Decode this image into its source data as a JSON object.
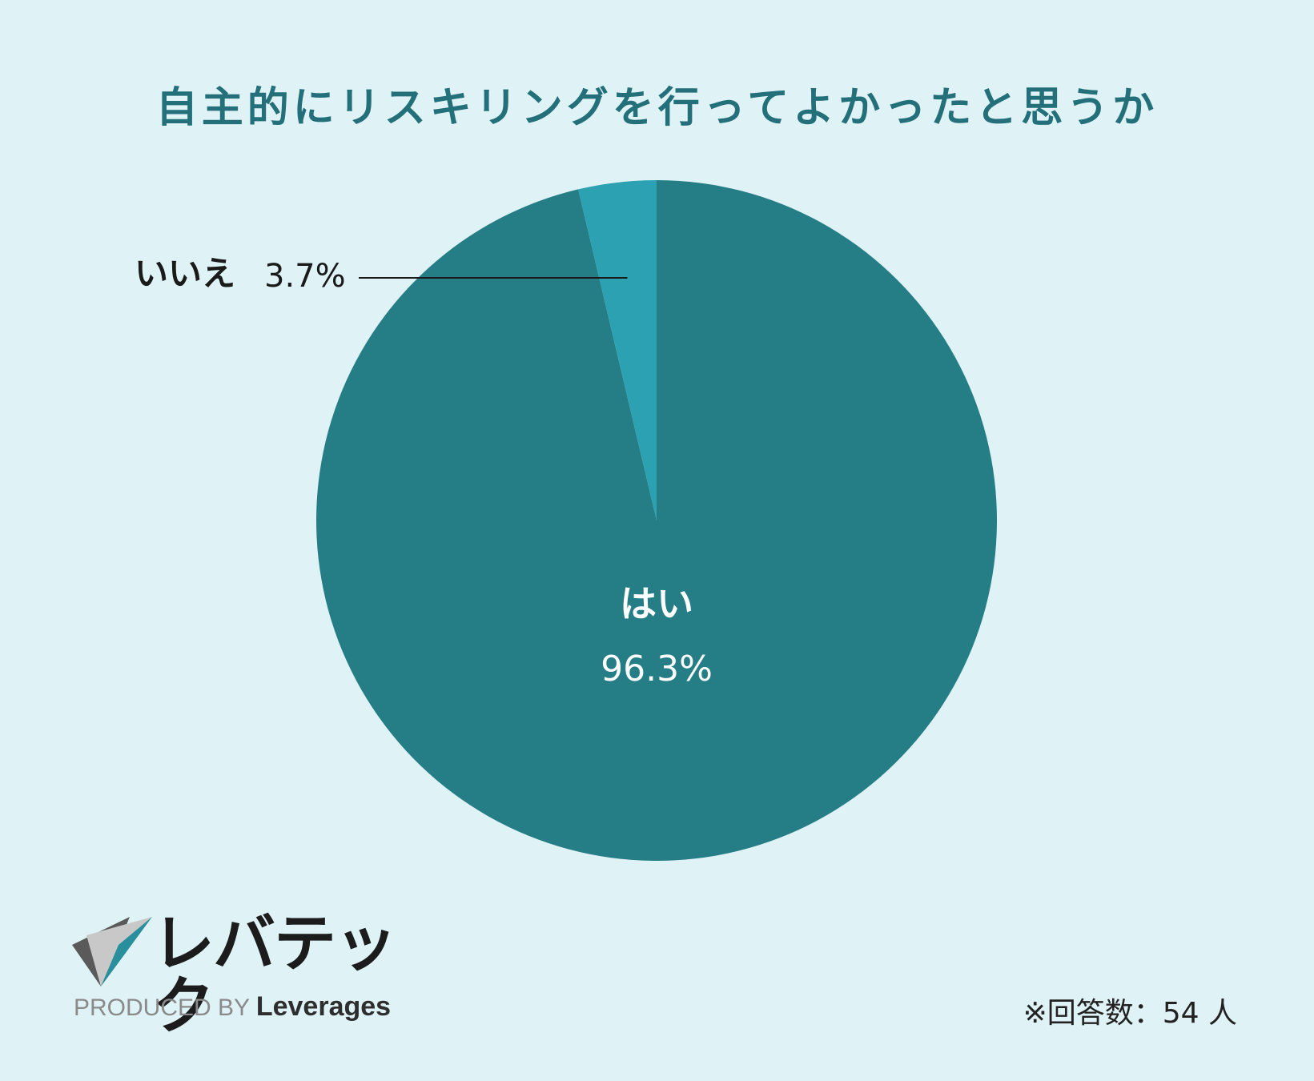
{
  "title": "自主的にリスキリングを行ってよかったと思うか",
  "chart_data": {
    "type": "pie",
    "title": "自主的にリスキリングを行ってよかったと思うか",
    "slices": [
      {
        "label": "はい",
        "value": 96.3,
        "value_label": "96.3%",
        "color": "#257d85"
      },
      {
        "label": "いいえ",
        "value": 3.7,
        "value_label": "3.7%",
        "color": "#2ba1b2"
      }
    ],
    "start_angle": "12 o'clock",
    "direction": "counterclockwise for いいえ"
  },
  "brand": {
    "logo_text": "レバテック",
    "produced_by": "PRODUCED BY",
    "company": "Leverages"
  },
  "note": "※回答数：54 人"
}
